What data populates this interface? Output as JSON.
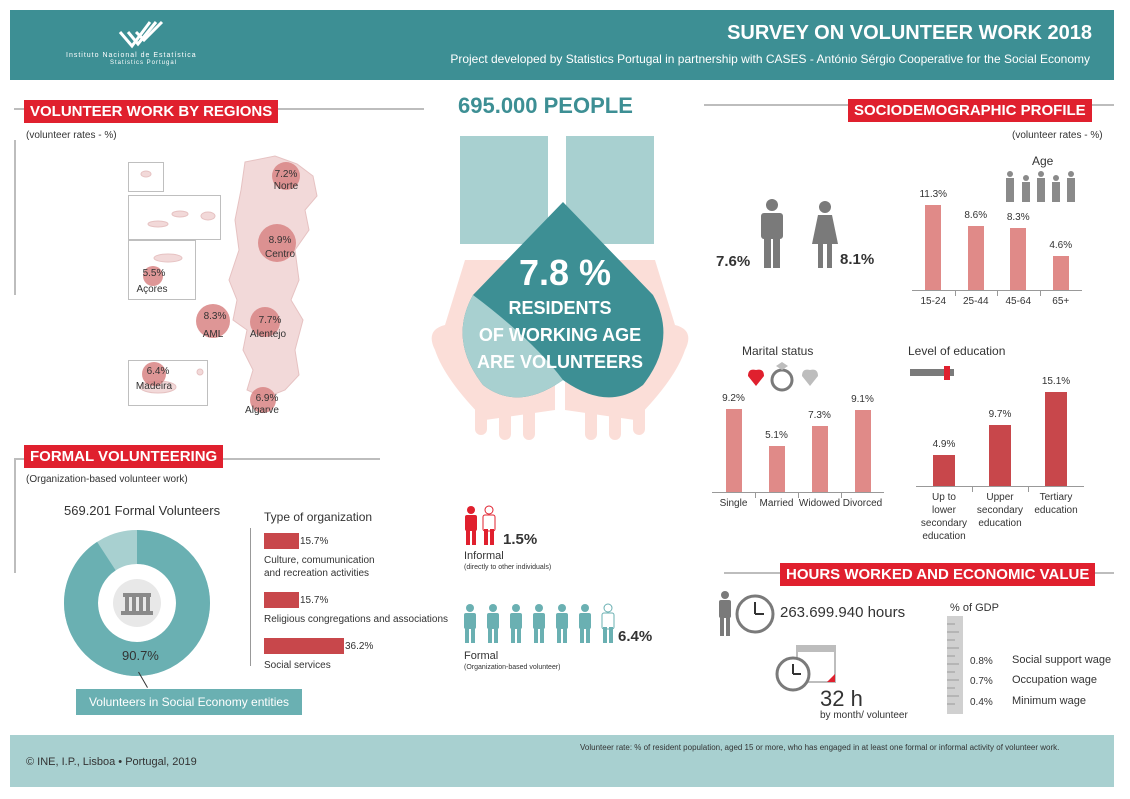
{
  "header": {
    "title": "SURVEY ON VOLUNTEER WORK 2018",
    "subtitle": "Project developed by Statistics Portugal in partnership with CASES - António Sérgio Cooperative for the Social Economy",
    "logo_line1": "Instituto Nacional de Estatística",
    "logo_line2": "Statistics Portugal"
  },
  "regions": {
    "title": "VOLUNTEER WORK BY REGIONS",
    "unit": "(volunteer rates - %)",
    "items": [
      {
        "name": "Norte",
        "value": "7.2%"
      },
      {
        "name": "Centro",
        "value": "8.9%"
      },
      {
        "name": "Açores",
        "value": "5.5%"
      },
      {
        "name": "AML",
        "value": "8.3%"
      },
      {
        "name": "Alentejo",
        "value": "7.7%"
      },
      {
        "name": "Madeira",
        "value": "6.4%"
      },
      {
        "name": "Algarve",
        "value": "6.9%"
      }
    ]
  },
  "center": {
    "people": "695.000 PEOPLE",
    "rate": "7.8 %",
    "line1": "RESIDENTS",
    "line2": "OF WORKING AGE",
    "line3": "ARE VOLUNTEERS"
  },
  "formal": {
    "title": "FORMAL VOLUNTEERING",
    "unit": "(Organization-based volunteer work)",
    "count": "569.201 Formal Volunteers",
    "donut_value": "90.7%",
    "donut_fraction": 0.907,
    "donut_caption": "Volunteers in Social Economy entities",
    "org_title": "Type of organization",
    "orgs": [
      {
        "value": "15.7%",
        "label_line1": "Culture, comumunication",
        "label_line2": "and recreation activities",
        "num": 15.7
      },
      {
        "value": "15.7%",
        "label_line1": "Religious congregations and associations",
        "label_line2": "",
        "num": 15.7
      },
      {
        "value": "36.2%",
        "label_line1": "Social services",
        "label_line2": "",
        "num": 36.2
      }
    ]
  },
  "informal": {
    "value": "1.5%",
    "label": "Informal",
    "sublabel": "(directly to other individuals)"
  },
  "formal_people": {
    "value": "6.4%",
    "label": "Formal",
    "sublabel": "(Organization-based volunteer)"
  },
  "socio": {
    "title": "SOCIODEMOGRAPHIC PROFILE",
    "unit": "(volunteer rates - %)",
    "male": "7.6%",
    "female": "8.1%"
  },
  "chart_data": [
    {
      "type": "bar",
      "title": "Age",
      "categories": [
        "15-24",
        "25-44",
        "45-64",
        "65+"
      ],
      "values": [
        11.3,
        8.6,
        8.3,
        4.6
      ],
      "labels": [
        "11.3%",
        "8.6%",
        "8.3%",
        "4.6%"
      ],
      "ylim": [
        0,
        12
      ],
      "color": "#e08a88"
    },
    {
      "type": "bar",
      "title": "Marital status",
      "categories": [
        "Single",
        "Married",
        "Widowed",
        "Divorced"
      ],
      "values": [
        9.2,
        5.1,
        7.3,
        9.1
      ],
      "labels": [
        "9.2%",
        "5.1%",
        "7.3%",
        "9.1%"
      ],
      "ylim": [
        0,
        10
      ],
      "color": "#e08a88"
    },
    {
      "type": "bar",
      "title": "Level of education",
      "categories": [
        [
          "Up to",
          "lower",
          "secondary",
          "education"
        ],
        [
          "Upper",
          "secondary",
          "education"
        ],
        [
          "Tertiary",
          "education"
        ]
      ],
      "values": [
        4.9,
        9.7,
        15.1
      ],
      "labels": [
        "4.9%",
        "9.7%",
        "15.1%"
      ],
      "ylim": [
        0,
        16
      ],
      "color": "#c8474b"
    }
  ],
  "hours": {
    "title": "HOURS WORKED AND ECONOMIC VALUE",
    "total": "263.699.940 hours",
    "per_month": "32 h",
    "per_month_label": "by month/ volunteer",
    "gdp_title": "% of GDP",
    "gdp": [
      {
        "value": "0.8%",
        "label": "Social support wage"
      },
      {
        "value": "0.7%",
        "label": "Occupation wage"
      },
      {
        "value": "0.4%",
        "label": "Minimum wage"
      }
    ]
  },
  "footer": {
    "copyright": "© INE, I.P., Lisboa • Portugal, 2019",
    "note": "Volunteer rate: % of resident population, aged 15 or more, who has engaged in at least one formal or informal activity of volunteer work."
  },
  "colors": {
    "teal": "#3d8f94",
    "teal_light": "#a8d0d0",
    "red": "#e0202e",
    "salmon": "#e08a88",
    "dark_red": "#c8474b"
  }
}
